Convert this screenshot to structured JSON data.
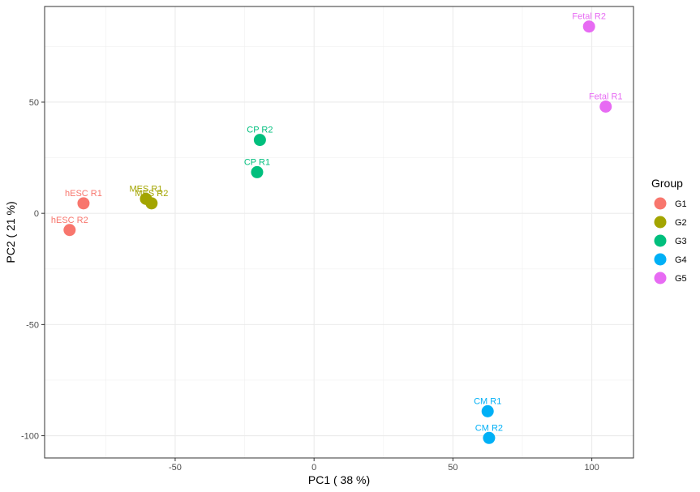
{
  "chart_data": {
    "type": "scatter",
    "title": "",
    "xlabel": "PC1 ( 38 %)",
    "ylabel": "PC2 ( 21 %)",
    "xlim": [
      -97,
      115
    ],
    "ylim": [
      -110,
      93
    ],
    "x_ticks": [
      -50,
      0,
      50,
      100
    ],
    "y_ticks": [
      -100,
      -50,
      0,
      50
    ],
    "grid": true,
    "legend_title": "Group",
    "legend_position": "right",
    "series": [
      {
        "name": "G1",
        "color": "#F8766D",
        "points": [
          {
            "label": "hESC R1",
            "x": -83,
            "y": 4.5
          },
          {
            "label": "hESC R2",
            "x": -88,
            "y": -7.5
          }
        ]
      },
      {
        "name": "G2",
        "color": "#A3A500",
        "points": [
          {
            "label": "MES R1",
            "x": -60.5,
            "y": 6.5
          },
          {
            "label": "MES R2",
            "x": -58.5,
            "y": 4.5
          }
        ]
      },
      {
        "name": "G3",
        "color": "#00BF7D",
        "points": [
          {
            "label": "CP R2",
            "x": -19.5,
            "y": 33
          },
          {
            "label": "CP R1",
            "x": -20.5,
            "y": 18.5
          }
        ]
      },
      {
        "name": "G4",
        "color": "#00B0F6",
        "points": [
          {
            "label": "CM R1",
            "x": 62.5,
            "y": -89
          },
          {
            "label": "CM R2",
            "x": 63,
            "y": -101
          }
        ]
      },
      {
        "name": "G5",
        "color": "#E76BF3",
        "points": [
          {
            "label": "Fetal R2",
            "x": 99,
            "y": 84
          },
          {
            "label": "Fetal R1",
            "x": 105,
            "y": 48
          }
        ]
      }
    ]
  }
}
